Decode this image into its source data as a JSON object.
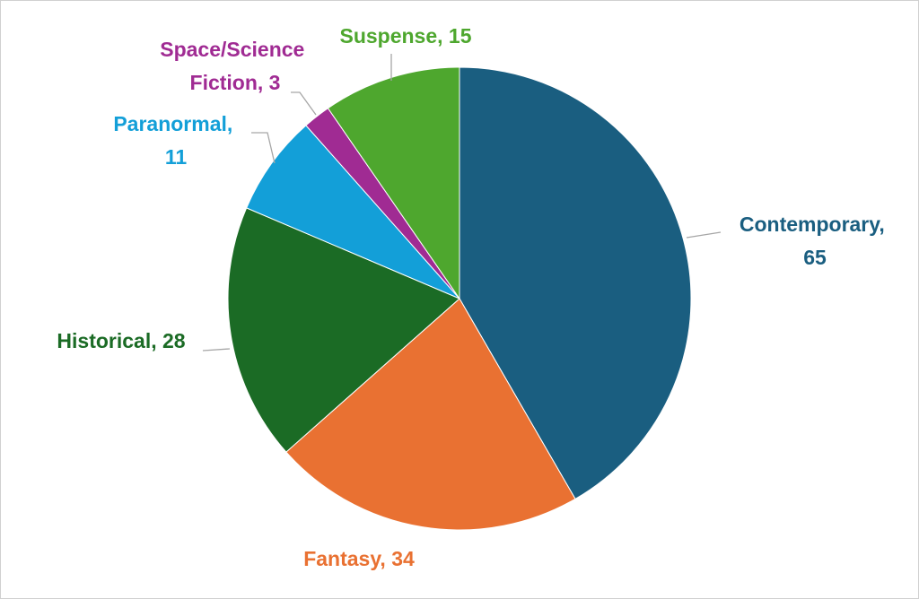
{
  "chart_data": {
    "type": "pie",
    "labels": [
      "Contemporary, 65",
      "Fantasy, 34",
      "Historical, 28",
      "Paranormal, 11",
      "Space/Science Fiction, 3",
      "Suspense, 15"
    ],
    "values": [
      65,
      34,
      28,
      11,
      3,
      15
    ],
    "colors": [
      "#1a5e80",
      "#e97132",
      "#1b6b25",
      "#139fd8",
      "#a02b93",
      "#4ea72e"
    ]
  }
}
